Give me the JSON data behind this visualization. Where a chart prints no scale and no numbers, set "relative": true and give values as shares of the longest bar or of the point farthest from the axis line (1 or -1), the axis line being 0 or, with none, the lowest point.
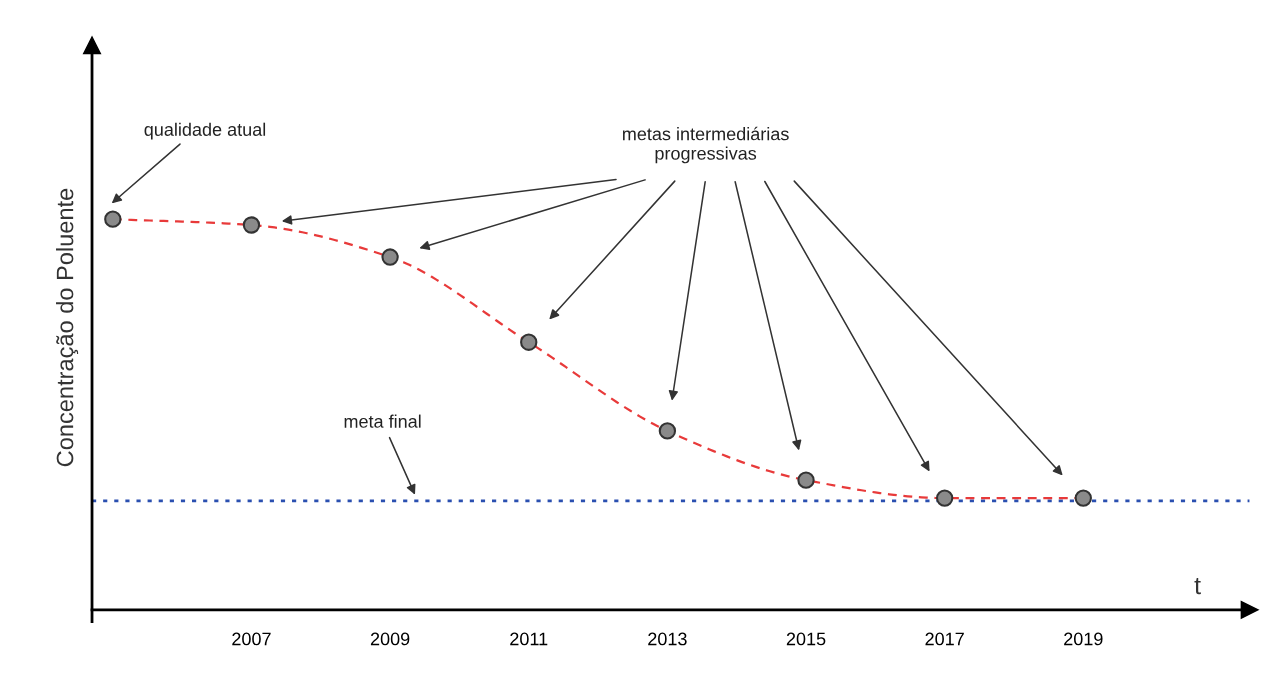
{
  "chart_data": {
    "type": "line",
    "relative": true,
    "xlabel": "t",
    "ylabel": "Concentração do Poluente",
    "x": [
      2005,
      2007,
      2009,
      2011,
      2013,
      2015,
      2017,
      2019
    ],
    "xlim": [
      2004.7,
      2021.4
    ],
    "xticks": [
      2007,
      2009,
      2011,
      2013,
      2015,
      2017,
      2019
    ],
    "series": [
      {
        "color": "#e83a3a",
        "values": [
          1,
          0.985,
          0.903,
          0.685,
          0.458,
          0.332,
          0.286,
          0.286
        ]
      }
    ],
    "marker": "circle",
    "line_style": "dashed",
    "grid": false,
    "ref_lines": [
      {
        "axis": "y",
        "value": 0.279,
        "color": "#2a4fb0",
        "line_style": "dotted"
      }
    ],
    "annotations": [
      "qualidade atual",
      "metas intermediárias\nprogressivas",
      "meta final"
    ]
  }
}
